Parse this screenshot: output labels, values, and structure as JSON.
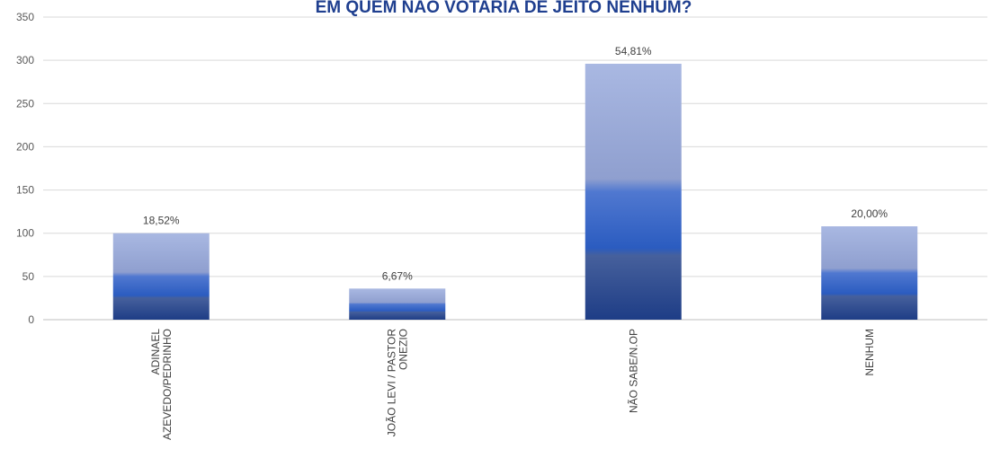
{
  "chart_data": {
    "type": "bar",
    "title": "EM QUEM NÃO VOTARIA DE JEITO NENHUM?",
    "categories": [
      [
        "ADINAEL",
        "AZEVEDO/PEDRINHO"
      ],
      [
        "JOÃO LEVI / PASTOR",
        "ONEZIO"
      ],
      [
        "NÃO SABE/N.OP"
      ],
      [
        "NENHUM"
      ]
    ],
    "values": [
      100,
      36,
      296,
      108
    ],
    "data_labels": [
      "18,52%",
      "6,67%",
      "54,81%",
      "20,00%"
    ],
    "ylim": [
      0,
      350
    ],
    "yticks": [
      0,
      50,
      100,
      150,
      200,
      250,
      300,
      350
    ],
    "grid": true,
    "legend": "none",
    "colors": {
      "bar_top": "#a7b6e0",
      "bar_mid": "#2e5fc4",
      "bar_bottom": "#1f3f8a",
      "title": "#1f3f8f"
    }
  }
}
